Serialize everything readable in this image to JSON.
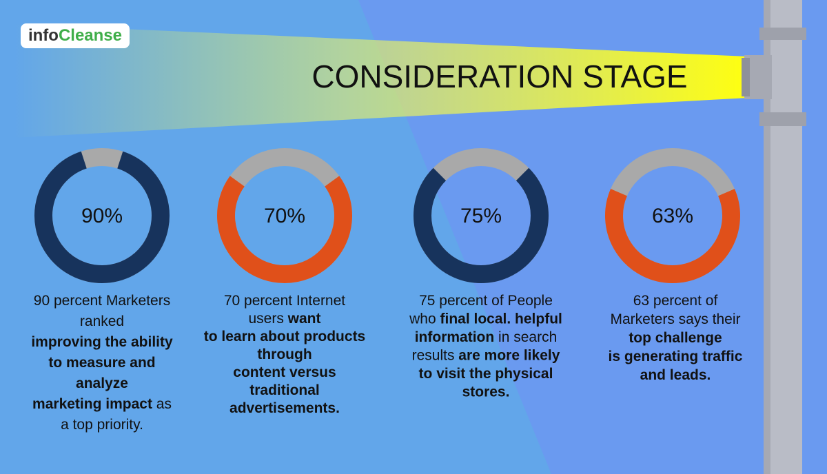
{
  "logo": {
    "prefix": "info",
    "suffix": "Cleanse"
  },
  "title": "CONSIDERATION STAGE",
  "chart_data": [
    {
      "type": "donut",
      "values": [
        90
      ],
      "value_labels": [
        "90%"
      ],
      "color": "#17335c",
      "rest_color": "#a9a9a9",
      "caption": [
        [
          {
            "text": "90 percent Marketers",
            "bold": false
          }
        ],
        [
          {
            "text": "ranked",
            "bold": false
          }
        ],
        [
          {
            "text": "improving the ability",
            "bold": true
          }
        ],
        [
          {
            "text": "to measure and",
            "bold": true
          }
        ],
        [
          {
            "text": "analyze",
            "bold": true
          }
        ],
        [
          {
            "text": "marketing impact",
            "bold": true
          },
          {
            "text": " as",
            "bold": false
          }
        ],
        [
          {
            "text": "a top priority.",
            "bold": false
          }
        ]
      ]
    },
    {
      "type": "donut",
      "values": [
        70
      ],
      "value_labels": [
        "70%"
      ],
      "color": "#e0501a",
      "rest_color": "#a9a9a9",
      "caption": [
        [
          {
            "text": "70 percent Internet",
            "bold": false
          }
        ],
        [
          {
            "text": "users ",
            "bold": false
          },
          {
            "text": "want",
            "bold": true
          }
        ],
        [
          {
            "text": "to learn about products",
            "bold": true
          }
        ],
        [
          {
            "text": "through",
            "bold": true
          }
        ],
        [
          {
            "text": "content versus",
            "bold": true
          }
        ],
        [
          {
            "text": "traditional",
            "bold": true
          }
        ],
        [
          {
            "text": "advertisements.",
            "bold": true
          }
        ]
      ]
    },
    {
      "type": "donut",
      "values": [
        75
      ],
      "value_labels": [
        "75%"
      ],
      "color": "#17335c",
      "rest_color": "#a9a9a9",
      "caption": [
        [
          {
            "text": "75 percent of People",
            "bold": false
          }
        ],
        [
          {
            "text": "who ",
            "bold": false
          },
          {
            "text": "final local. helpful",
            "bold": true
          }
        ],
        [
          {
            "text": "information",
            "bold": true
          },
          {
            "text": " in search",
            "bold": false
          }
        ],
        [
          {
            "text": "results ",
            "bold": false
          },
          {
            "text": "are more likely",
            "bold": true
          }
        ],
        [
          {
            "text": "to visit the physical",
            "bold": true
          }
        ],
        [
          {
            "text": "stores.",
            "bold": true
          }
        ]
      ]
    },
    {
      "type": "donut",
      "values": [
        63
      ],
      "value_labels": [
        "63%"
      ],
      "color": "#e0501a",
      "rest_color": "#a9a9a9",
      "caption": [
        [
          {
            "text": "63 percent of",
            "bold": false
          }
        ],
        [
          {
            "text": "Marketers says their",
            "bold": false
          }
        ],
        [
          {
            "text": "top challenge",
            "bold": true
          }
        ],
        [
          {
            "text": "is generating traffic",
            "bold": true
          }
        ],
        [
          {
            "text": "and leads.",
            "bold": true
          }
        ]
      ]
    }
  ]
}
